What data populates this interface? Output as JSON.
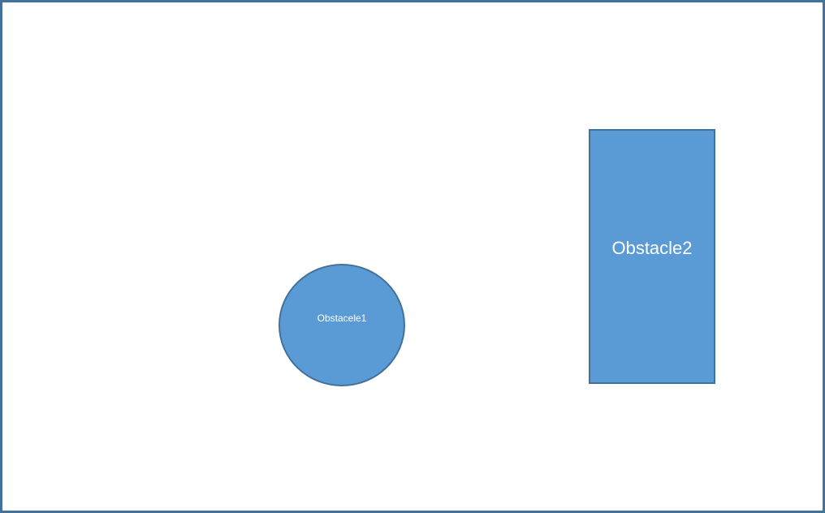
{
  "colors": {
    "shape_fill": "#5b9bd5",
    "shape_border": "#41719c",
    "frame_border": "#41719c",
    "background": "#ffffff",
    "text": "#ffffff"
  },
  "shapes": {
    "obstacle1": {
      "kind": "circle",
      "label": "Obstacele1"
    },
    "obstacle2": {
      "kind": "rectangle",
      "label": "Obstacle2"
    }
  }
}
